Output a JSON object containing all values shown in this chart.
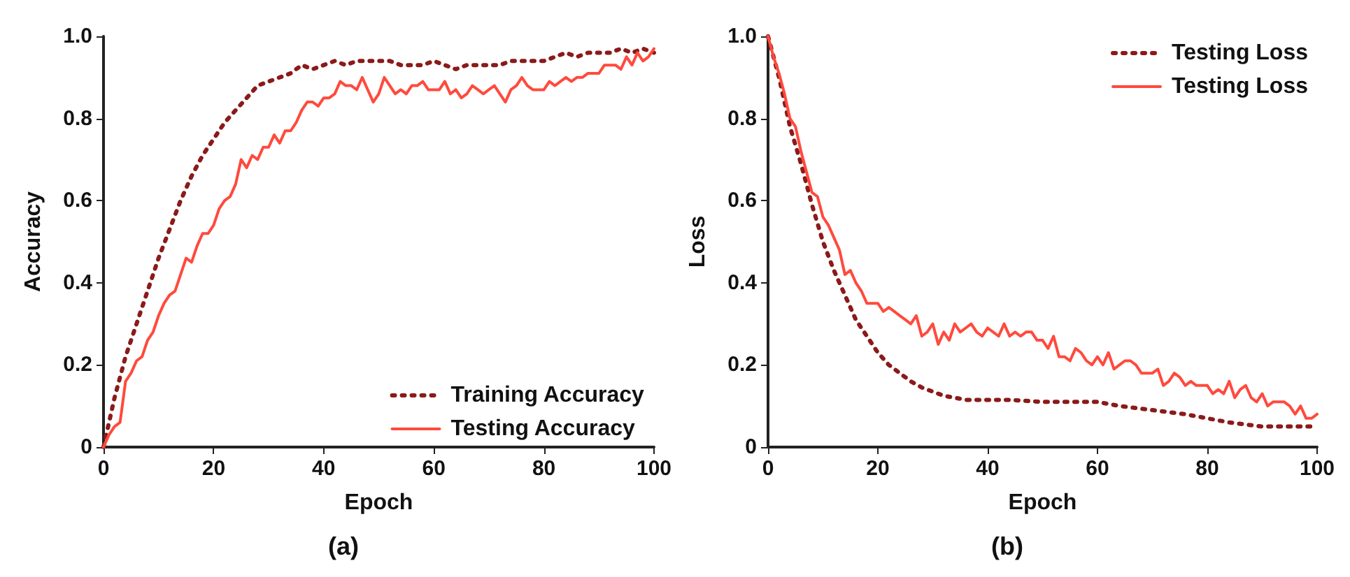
{
  "chart_data": [
    {
      "type": "line",
      "xlabel": "Epoch",
      "ylabel": "Accuracy",
      "annotations": [
        "(a)"
      ],
      "xlim": [
        0,
        100
      ],
      "ylim": [
        0,
        1
      ],
      "xticks": [
        0,
        20,
        40,
        60,
        80,
        100
      ],
      "yticks": [
        0,
        0.2,
        0.4,
        0.6,
        0.8,
        {
          "value": 1,
          "label": "1.0"
        }
      ],
      "grid": false,
      "legend": "bottom right",
      "series": [
        {
          "name": "Training Accuracy",
          "color": "#8b1a1a",
          "line_style": "dotted",
          "x": [
            0,
            2,
            4,
            6,
            8,
            10,
            12,
            14,
            16,
            18,
            20,
            22,
            24,
            26,
            28,
            30,
            32,
            34,
            36,
            38,
            40,
            42,
            44,
            46,
            48,
            50,
            52,
            54,
            56,
            58,
            60,
            62,
            64,
            66,
            68,
            70,
            72,
            74,
            76,
            78,
            80,
            82,
            84,
            86,
            88,
            90,
            92,
            94,
            96,
            98,
            100
          ],
          "values": [
            0,
            0.12,
            0.22,
            0.3,
            0.38,
            0.46,
            0.53,
            0.6,
            0.66,
            0.71,
            0.75,
            0.79,
            0.82,
            0.85,
            0.88,
            0.89,
            0.9,
            0.91,
            0.93,
            0.92,
            0.93,
            0.94,
            0.93,
            0.94,
            0.94,
            0.94,
            0.94,
            0.93,
            0.93,
            0.93,
            0.94,
            0.93,
            0.92,
            0.93,
            0.93,
            0.93,
            0.93,
            0.94,
            0.94,
            0.94,
            0.94,
            0.95,
            0.96,
            0.95,
            0.96,
            0.96,
            0.96,
            0.97,
            0.96,
            0.97,
            0.96
          ]
        },
        {
          "name": "Testing Accuracy",
          "color": "#ff4a3d",
          "line_style": "solid",
          "x": [
            0,
            1,
            2,
            3,
            4,
            5,
            6,
            7,
            8,
            9,
            10,
            11,
            12,
            13,
            14,
            15,
            16,
            17,
            18,
            19,
            20,
            21,
            22,
            23,
            24,
            25,
            26,
            27,
            28,
            29,
            30,
            31,
            32,
            33,
            34,
            35,
            36,
            37,
            38,
            39,
            40,
            41,
            42,
            43,
            44,
            45,
            46,
            47,
            48,
            49,
            50,
            51,
            52,
            53,
            54,
            55,
            56,
            57,
            58,
            59,
            60,
            61,
            62,
            63,
            64,
            65,
            66,
            67,
            68,
            69,
            70,
            71,
            72,
            73,
            74,
            75,
            76,
            77,
            78,
            79,
            80,
            81,
            82,
            83,
            84,
            85,
            86,
            87,
            88,
            89,
            90,
            91,
            92,
            93,
            94,
            95,
            96,
            97,
            98,
            99,
            100
          ],
          "values": [
            0,
            0.03,
            0.05,
            0.06,
            0.16,
            0.18,
            0.21,
            0.22,
            0.26,
            0.28,
            0.32,
            0.35,
            0.37,
            0.38,
            0.42,
            0.46,
            0.45,
            0.49,
            0.52,
            0.52,
            0.54,
            0.58,
            0.6,
            0.61,
            0.64,
            0.7,
            0.68,
            0.71,
            0.7,
            0.73,
            0.73,
            0.76,
            0.74,
            0.77,
            0.77,
            0.79,
            0.82,
            0.84,
            0.84,
            0.83,
            0.85,
            0.85,
            0.86,
            0.89,
            0.88,
            0.88,
            0.87,
            0.9,
            0.87,
            0.84,
            0.86,
            0.9,
            0.88,
            0.86,
            0.87,
            0.86,
            0.88,
            0.88,
            0.89,
            0.87,
            0.87,
            0.87,
            0.89,
            0.86,
            0.87,
            0.85,
            0.86,
            0.88,
            0.87,
            0.86,
            0.87,
            0.88,
            0.86,
            0.84,
            0.87,
            0.88,
            0.9,
            0.88,
            0.87,
            0.87,
            0.87,
            0.89,
            0.88,
            0.89,
            0.9,
            0.89,
            0.9,
            0.9,
            0.91,
            0.91,
            0.91,
            0.93,
            0.93,
            0.93,
            0.92,
            0.95,
            0.93,
            0.96,
            0.94,
            0.95,
            0.97
          ]
        }
      ]
    },
    {
      "type": "line",
      "xlabel": "Epoch",
      "ylabel": "Loss",
      "annotations": [
        "(b)"
      ],
      "xlim": [
        0,
        100
      ],
      "ylim": [
        0,
        1
      ],
      "xticks": [
        0,
        20,
        40,
        60,
        80,
        100
      ],
      "yticks": [
        0,
        0.2,
        0.4,
        0.6,
        0.8,
        {
          "value": 1,
          "label": "1.0"
        }
      ],
      "grid": false,
      "legend": "top right",
      "series": [
        {
          "name": "Testing Loss",
          "color": "#8b1a1a",
          "line_style": "dotted",
          "x": [
            0,
            2,
            4,
            6,
            8,
            10,
            12,
            14,
            16,
            18,
            20,
            22,
            24,
            26,
            28,
            30,
            32,
            34,
            36,
            40,
            44,
            50,
            56,
            60,
            64,
            70,
            76,
            80,
            84,
            90,
            96,
            100
          ],
          "values": [
            1,
            0.9,
            0.78,
            0.69,
            0.59,
            0.5,
            0.43,
            0.37,
            0.31,
            0.27,
            0.23,
            0.2,
            0.18,
            0.16,
            0.145,
            0.135,
            0.125,
            0.12,
            0.115,
            0.115,
            0.115,
            0.11,
            0.11,
            0.11,
            0.1,
            0.09,
            0.08,
            0.07,
            0.06,
            0.05,
            0.05,
            0.05
          ]
        },
        {
          "name": "Testing Loss",
          "color": "#ff4a3d",
          "line_style": "solid",
          "x": [
            0,
            1,
            2,
            3,
            4,
            5,
            6,
            7,
            8,
            9,
            10,
            11,
            12,
            13,
            14,
            15,
            16,
            17,
            18,
            19,
            20,
            21,
            22,
            23,
            24,
            25,
            26,
            27,
            28,
            29,
            30,
            31,
            32,
            33,
            34,
            35,
            36,
            37,
            38,
            39,
            40,
            41,
            42,
            43,
            44,
            45,
            46,
            47,
            48,
            49,
            50,
            51,
            52,
            53,
            54,
            55,
            56,
            57,
            58,
            59,
            60,
            61,
            62,
            63,
            64,
            65,
            66,
            67,
            68,
            69,
            70,
            71,
            72,
            73,
            74,
            75,
            76,
            77,
            78,
            79,
            80,
            81,
            82,
            83,
            84,
            85,
            86,
            87,
            88,
            89,
            90,
            91,
            92,
            93,
            94,
            95,
            96,
            97,
            98,
            99,
            100
          ],
          "values": [
            1,
            0.95,
            0.91,
            0.86,
            0.8,
            0.78,
            0.72,
            0.67,
            0.62,
            0.61,
            0.56,
            0.54,
            0.51,
            0.48,
            0.42,
            0.43,
            0.4,
            0.38,
            0.35,
            0.35,
            0.35,
            0.33,
            0.34,
            0.33,
            0.32,
            0.31,
            0.3,
            0.32,
            0.27,
            0.28,
            0.3,
            0.25,
            0.28,
            0.26,
            0.3,
            0.28,
            0.29,
            0.3,
            0.28,
            0.27,
            0.29,
            0.28,
            0.27,
            0.3,
            0.27,
            0.28,
            0.27,
            0.28,
            0.28,
            0.26,
            0.26,
            0.24,
            0.27,
            0.22,
            0.22,
            0.21,
            0.24,
            0.23,
            0.21,
            0.2,
            0.22,
            0.2,
            0.23,
            0.19,
            0.2,
            0.21,
            0.21,
            0.2,
            0.18,
            0.18,
            0.18,
            0.19,
            0.15,
            0.16,
            0.18,
            0.17,
            0.15,
            0.16,
            0.15,
            0.15,
            0.15,
            0.13,
            0.14,
            0.13,
            0.16,
            0.12,
            0.14,
            0.15,
            0.12,
            0.11,
            0.13,
            0.1,
            0.11,
            0.11,
            0.11,
            0.1,
            0.08,
            0.1,
            0.07,
            0.07,
            0.08
          ]
        }
      ]
    }
  ]
}
